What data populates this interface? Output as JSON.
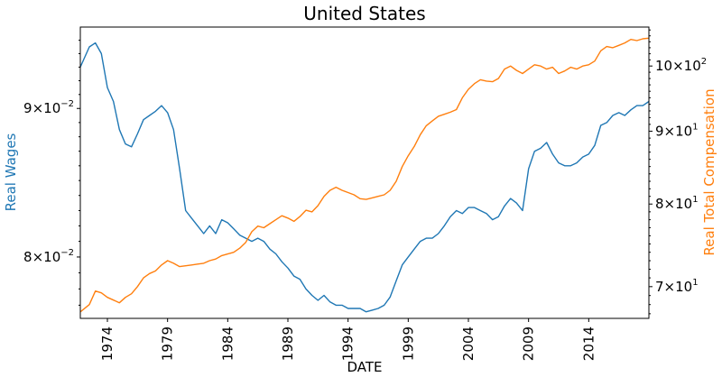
{
  "chart_data": {
    "type": "line",
    "title": "United States",
    "xlabel": "DATE",
    "x_ticks": [
      "1974",
      "1979",
      "1984",
      "1989",
      "1994",
      "1999",
      "2004",
      "2009",
      "2014"
    ],
    "xlim": [
      1971.75,
      2019.0
    ],
    "left_axis": {
      "label": "Real Wages",
      "scale": "log",
      "ylim": [
        0.0762,
        0.096
      ],
      "color": "#1f77b4",
      "ticks": [
        {
          "value": 0.08,
          "mantissa": "8",
          "exponent": "−2"
        },
        {
          "value": 0.09,
          "mantissa": "9",
          "exponent": "−2"
        }
      ]
    },
    "right_axis": {
      "label": "Real Total Compensation",
      "scale": "log",
      "ylim": [
        66.5,
        106.5
      ],
      "color": "#ff7f0e",
      "ticks": [
        {
          "value": 70,
          "mantissa": "7",
          "exponent": "1"
        },
        {
          "value": 80,
          "mantissa": "8",
          "exponent": "1"
        },
        {
          "value": 90,
          "mantissa": "9",
          "exponent": "1"
        },
        {
          "value": 100,
          "mantissa": "10",
          "exponent": "2"
        }
      ]
    },
    "grid": false,
    "series": [
      {
        "name": "Real Wages",
        "axis": "left",
        "color": "#1f77b4",
        "points": [
          [
            1971.75,
            0.093
          ],
          [
            1972.5,
            0.0945
          ],
          [
            1973.0,
            0.0948
          ],
          [
            1973.5,
            0.094
          ],
          [
            1974.0,
            0.0915
          ],
          [
            1974.5,
            0.0905
          ],
          [
            1975.0,
            0.0885
          ],
          [
            1975.5,
            0.0875
          ],
          [
            1976.0,
            0.0873
          ],
          [
            1976.5,
            0.0882
          ],
          [
            1977.0,
            0.0892
          ],
          [
            1977.5,
            0.0895
          ],
          [
            1978.0,
            0.0898
          ],
          [
            1978.5,
            0.0902
          ],
          [
            1979.0,
            0.0897
          ],
          [
            1979.5,
            0.0885
          ],
          [
            1980.0,
            0.0858
          ],
          [
            1980.5,
            0.083
          ],
          [
            1981.0,
            0.0825
          ],
          [
            1981.5,
            0.082
          ],
          [
            1982.0,
            0.0815
          ],
          [
            1982.5,
            0.082
          ],
          [
            1983.0,
            0.0815
          ],
          [
            1983.5,
            0.0824
          ],
          [
            1984.0,
            0.0822
          ],
          [
            1984.5,
            0.0818
          ],
          [
            1985.0,
            0.0814
          ],
          [
            1985.5,
            0.0812
          ],
          [
            1986.0,
            0.081
          ],
          [
            1986.5,
            0.0812
          ],
          [
            1987.0,
            0.081
          ],
          [
            1987.5,
            0.0805
          ],
          [
            1988.0,
            0.0802
          ],
          [
            1988.5,
            0.0797
          ],
          [
            1989.0,
            0.0793
          ],
          [
            1989.5,
            0.0788
          ],
          [
            1990.0,
            0.0786
          ],
          [
            1990.5,
            0.078
          ],
          [
            1991.0,
            0.0776
          ],
          [
            1991.5,
            0.0773
          ],
          [
            1992.0,
            0.0776
          ],
          [
            1992.5,
            0.0772
          ],
          [
            1993.0,
            0.077
          ],
          [
            1993.5,
            0.077
          ],
          [
            1994.0,
            0.0768
          ],
          [
            1994.5,
            0.0768
          ],
          [
            1995.0,
            0.0768
          ],
          [
            1995.5,
            0.0766
          ],
          [
            1996.0,
            0.0767
          ],
          [
            1996.5,
            0.0768
          ],
          [
            1997.0,
            0.077
          ],
          [
            1997.5,
            0.0775
          ],
          [
            1998.0,
            0.0785
          ],
          [
            1998.5,
            0.0795
          ],
          [
            1999.0,
            0.08
          ],
          [
            1999.5,
            0.0805
          ],
          [
            2000.0,
            0.081
          ],
          [
            2000.5,
            0.0812
          ],
          [
            2001.0,
            0.0812
          ],
          [
            2001.5,
            0.0815
          ],
          [
            2002.0,
            0.082
          ],
          [
            2002.5,
            0.0826
          ],
          [
            2003.0,
            0.083
          ],
          [
            2003.5,
            0.0828
          ],
          [
            2004.0,
            0.0832
          ],
          [
            2004.5,
            0.0832
          ],
          [
            2005.0,
            0.083
          ],
          [
            2005.5,
            0.0828
          ],
          [
            2006.0,
            0.0824
          ],
          [
            2006.5,
            0.0826
          ],
          [
            2007.0,
            0.0833
          ],
          [
            2007.5,
            0.0838
          ],
          [
            2008.0,
            0.0835
          ],
          [
            2008.5,
            0.083
          ],
          [
            2009.0,
            0.0858
          ],
          [
            2009.5,
            0.087
          ],
          [
            2010.0,
            0.0872
          ],
          [
            2010.5,
            0.0876
          ],
          [
            2011.0,
            0.0868
          ],
          [
            2011.5,
            0.0862
          ],
          [
            2012.0,
            0.086
          ],
          [
            2012.5,
            0.086
          ],
          [
            2013.0,
            0.0862
          ],
          [
            2013.5,
            0.0866
          ],
          [
            2014.0,
            0.0868
          ],
          [
            2014.5,
            0.0874
          ],
          [
            2015.0,
            0.0888
          ],
          [
            2015.5,
            0.089
          ],
          [
            2016.0,
            0.0895
          ],
          [
            2016.5,
            0.0897
          ],
          [
            2017.0,
            0.0895
          ],
          [
            2017.5,
            0.0899
          ],
          [
            2018.0,
            0.0902
          ],
          [
            2018.5,
            0.0902
          ],
          [
            2019.0,
            0.0905
          ]
        ]
      },
      {
        "name": "Real Total Compensation",
        "axis": "right",
        "color": "#ff7f0e",
        "points": [
          [
            1971.75,
            67.2
          ],
          [
            1972.5,
            68.0
          ],
          [
            1973.0,
            69.5
          ],
          [
            1973.5,
            69.3
          ],
          [
            1974.0,
            68.8
          ],
          [
            1974.5,
            68.5
          ],
          [
            1975.0,
            68.2
          ],
          [
            1975.5,
            68.8
          ],
          [
            1976.0,
            69.2
          ],
          [
            1976.5,
            70.0
          ],
          [
            1977.0,
            71.0
          ],
          [
            1977.5,
            71.5
          ],
          [
            1978.0,
            71.8
          ],
          [
            1978.5,
            72.5
          ],
          [
            1979.0,
            73.0
          ],
          [
            1979.5,
            72.7
          ],
          [
            1980.0,
            72.3
          ],
          [
            1980.5,
            72.4
          ],
          [
            1981.0,
            72.5
          ],
          [
            1981.5,
            72.6
          ],
          [
            1982.0,
            72.7
          ],
          [
            1982.5,
            73.0
          ],
          [
            1983.0,
            73.2
          ],
          [
            1983.5,
            73.6
          ],
          [
            1984.0,
            73.8
          ],
          [
            1984.5,
            74.0
          ],
          [
            1985.0,
            74.5
          ],
          [
            1985.5,
            75.2
          ],
          [
            1986.0,
            76.5
          ],
          [
            1986.5,
            77.2
          ],
          [
            1987.0,
            77.0
          ],
          [
            1987.5,
            77.5
          ],
          [
            1988.0,
            78.0
          ],
          [
            1988.5,
            78.5
          ],
          [
            1989.0,
            78.2
          ],
          [
            1989.5,
            77.8
          ],
          [
            1990.0,
            78.4
          ],
          [
            1990.5,
            79.2
          ],
          [
            1991.0,
            79.0
          ],
          [
            1991.5,
            79.8
          ],
          [
            1992.0,
            81.0
          ],
          [
            1992.5,
            81.8
          ],
          [
            1993.0,
            82.2
          ],
          [
            1993.5,
            81.8
          ],
          [
            1994.0,
            81.5
          ],
          [
            1994.5,
            81.2
          ],
          [
            1995.0,
            80.7
          ],
          [
            1995.5,
            80.6
          ],
          [
            1996.0,
            80.8
          ],
          [
            1996.5,
            81.0
          ],
          [
            1997.0,
            81.2
          ],
          [
            1997.5,
            81.8
          ],
          [
            1998.0,
            83.0
          ],
          [
            1998.5,
            85.0
          ],
          [
            1999.0,
            86.5
          ],
          [
            1999.5,
            87.8
          ],
          [
            2000.0,
            89.5
          ],
          [
            2000.5,
            90.8
          ],
          [
            2001.0,
            91.5
          ],
          [
            2001.5,
            92.2
          ],
          [
            2002.0,
            92.5
          ],
          [
            2002.5,
            92.8
          ],
          [
            2003.0,
            93.2
          ],
          [
            2003.5,
            95.0
          ],
          [
            2004.0,
            96.3
          ],
          [
            2004.5,
            97.2
          ],
          [
            2005.0,
            97.8
          ],
          [
            2005.5,
            97.6
          ],
          [
            2006.0,
            97.5
          ],
          [
            2006.5,
            98.0
          ],
          [
            2007.0,
            99.5
          ],
          [
            2007.5,
            100.0
          ],
          [
            2008.0,
            99.3
          ],
          [
            2008.5,
            98.8
          ],
          [
            2009.0,
            99.5
          ],
          [
            2009.5,
            100.2
          ],
          [
            2010.0,
            100.0
          ],
          [
            2010.5,
            99.5
          ],
          [
            2011.0,
            99.8
          ],
          [
            2011.5,
            98.8
          ],
          [
            2012.0,
            99.2
          ],
          [
            2012.5,
            99.8
          ],
          [
            2013.0,
            99.5
          ],
          [
            2013.5,
            100.0
          ],
          [
            2014.0,
            100.2
          ],
          [
            2014.5,
            100.8
          ],
          [
            2015.0,
            102.5
          ],
          [
            2015.5,
            103.2
          ],
          [
            2016.0,
            103.0
          ],
          [
            2016.5,
            103.4
          ],
          [
            2017.0,
            103.8
          ],
          [
            2017.5,
            104.4
          ],
          [
            2018.0,
            104.2
          ],
          [
            2018.5,
            104.5
          ],
          [
            2019.0,
            104.6
          ]
        ]
      }
    ]
  }
}
